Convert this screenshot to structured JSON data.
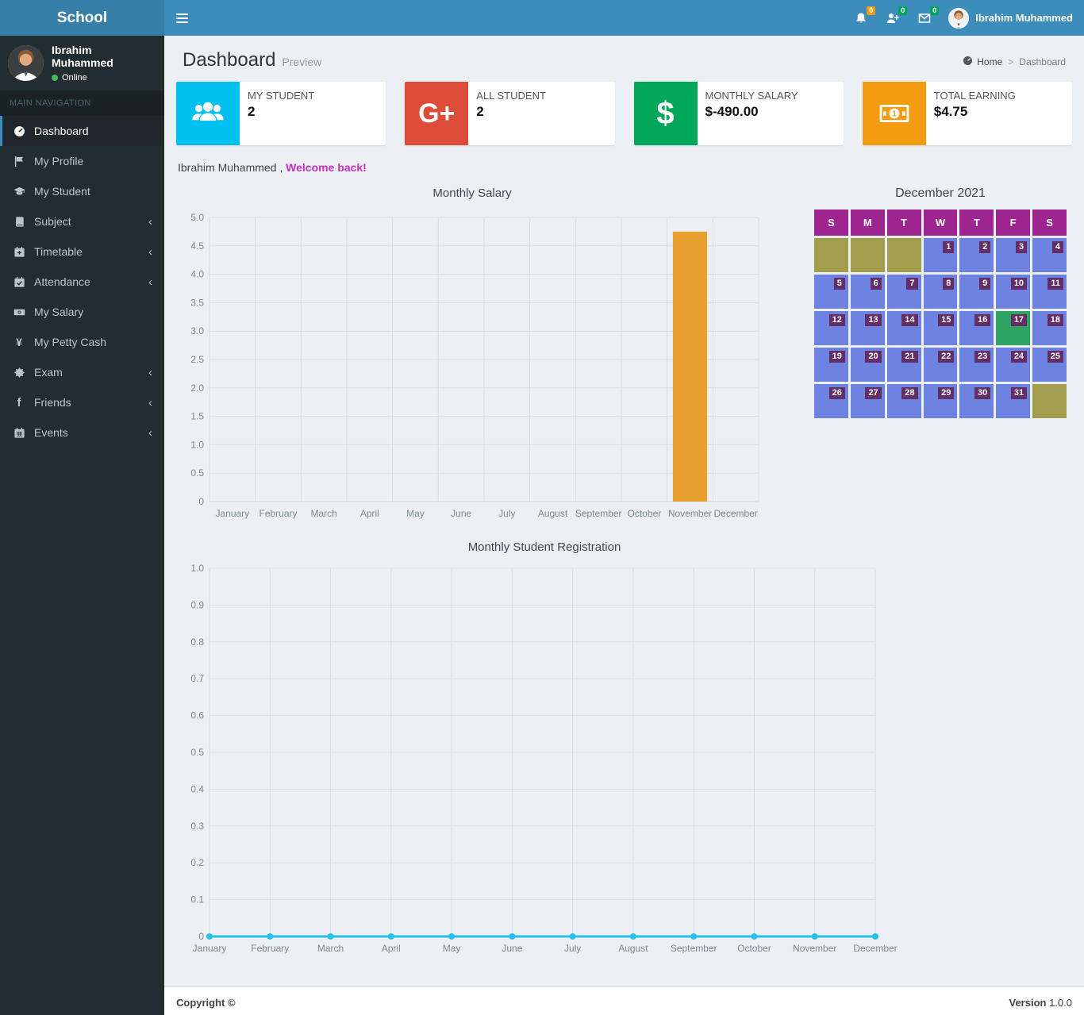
{
  "app": {
    "brand": "School"
  },
  "navbar": {
    "user_name": "Ibrahim Muhammed",
    "badges": [
      {
        "name": "notifications",
        "count": "0",
        "color": "#f39c12"
      },
      {
        "name": "friend-requests",
        "count": "0",
        "color": "#00a65a"
      },
      {
        "name": "messages",
        "count": "0",
        "color": "#00a65a"
      }
    ]
  },
  "sidebar": {
    "user": {
      "name": "Ibrahim Muhammed",
      "status": "Online"
    },
    "section_label": "MAIN NAVIGATION",
    "items": [
      {
        "label": "Dashboard"
      },
      {
        "label": "My Profile"
      },
      {
        "label": "My Student"
      },
      {
        "label": "Subject"
      },
      {
        "label": "Timetable"
      },
      {
        "label": "Attendance"
      },
      {
        "label": "My Salary"
      },
      {
        "label": "My Petty Cash"
      },
      {
        "label": "Exam"
      },
      {
        "label": "Friends"
      },
      {
        "label": "Events"
      }
    ],
    "chevron": "‹"
  },
  "page": {
    "title": "Dashboard",
    "subtitle": "Preview",
    "breadcrumb": {
      "home": "Home",
      "current": "Dashboard"
    }
  },
  "welcome": {
    "name": "Ibrahim Muhammed ,",
    "message": "Welcome back!"
  },
  "info_boxes": [
    {
      "label": "MY STUDENT",
      "value": "2",
      "color": "#00c0ef",
      "icon": "users-icon"
    },
    {
      "label": "ALL STUDENT",
      "value": "2",
      "color": "#dd4b39",
      "icon": "google-plus-icon",
      "glyph": "G+"
    },
    {
      "label": "MONTHLY SALARY",
      "value": "$-490.00",
      "color": "#00a65a",
      "icon": "dollar-icon",
      "glyph": "$"
    },
    {
      "label": "TOTAL EARNING",
      "value": "$4.75",
      "color": "#f39c12",
      "icon": "money-icon"
    }
  ],
  "chart_data": [
    {
      "type": "bar",
      "title": "Monthly Salary",
      "categories": [
        "January",
        "February",
        "March",
        "April",
        "May",
        "June",
        "July",
        "August",
        "September",
        "October",
        "November",
        "December"
      ],
      "values": [
        0,
        0,
        0,
        0,
        0,
        0,
        0,
        0,
        0,
        0,
        4.75,
        0
      ],
      "xlabel": "",
      "ylabel": "",
      "ylim": [
        0,
        5
      ],
      "ytick_step": 0.5,
      "bar_color": "#e8a02e",
      "grid": true,
      "legend": "none"
    },
    {
      "type": "line",
      "title": "Monthly Student Registration",
      "categories": [
        "January",
        "February",
        "March",
        "April",
        "May",
        "June",
        "July",
        "August",
        "September",
        "October",
        "November",
        "December"
      ],
      "values": [
        0,
        0,
        0,
        0,
        0,
        0,
        0,
        0,
        0,
        0,
        0,
        0
      ],
      "xlabel": "",
      "ylabel": "",
      "ylim": [
        0,
        1
      ],
      "ytick_step": 0.1,
      "line_color": "#29c0e8",
      "grid": true,
      "legend": "none"
    }
  ],
  "calendar": {
    "title": "December 2021",
    "day_headers": [
      "S",
      "M",
      "T",
      "W",
      "T",
      "F",
      "S"
    ],
    "weeks": [
      [
        {
          "type": "empty"
        },
        {
          "type": "empty"
        },
        {
          "type": "empty"
        },
        {
          "day": "1",
          "type": "day"
        },
        {
          "day": "2",
          "type": "day"
        },
        {
          "day": "3",
          "type": "day"
        },
        {
          "day": "4",
          "type": "day"
        }
      ],
      [
        {
          "day": "5",
          "type": "day"
        },
        {
          "day": "6",
          "type": "day"
        },
        {
          "day": "7",
          "type": "day"
        },
        {
          "day": "8",
          "type": "day"
        },
        {
          "day": "9",
          "type": "day"
        },
        {
          "day": "10",
          "type": "day"
        },
        {
          "day": "11",
          "type": "day"
        }
      ],
      [
        {
          "day": "12",
          "type": "day"
        },
        {
          "day": "13",
          "type": "day"
        },
        {
          "day": "14",
          "type": "day"
        },
        {
          "day": "15",
          "type": "day"
        },
        {
          "day": "16",
          "type": "day"
        },
        {
          "day": "17",
          "type": "today"
        },
        {
          "day": "18",
          "type": "day"
        }
      ],
      [
        {
          "day": "19",
          "type": "day"
        },
        {
          "day": "20",
          "type": "day"
        },
        {
          "day": "21",
          "type": "day"
        },
        {
          "day": "22",
          "type": "day"
        },
        {
          "day": "23",
          "type": "day"
        },
        {
          "day": "24",
          "type": "day"
        },
        {
          "day": "25",
          "type": "day"
        }
      ],
      [
        {
          "day": "26",
          "type": "day"
        },
        {
          "day": "27",
          "type": "day"
        },
        {
          "day": "28",
          "type": "day"
        },
        {
          "day": "29",
          "type": "day"
        },
        {
          "day": "30",
          "type": "day"
        },
        {
          "day": "31",
          "type": "day"
        },
        {
          "type": "empty"
        }
      ]
    ],
    "colors": {
      "header_bg": "#9e2590",
      "day_bg": "#6e82e2",
      "empty_bg": "#a39e4e",
      "today_bg": "#2ea362",
      "badge_bg": "#632d66"
    }
  },
  "footer": {
    "copyright": "Copyright ©",
    "version_label": "Version",
    "version": "1.0.0"
  }
}
